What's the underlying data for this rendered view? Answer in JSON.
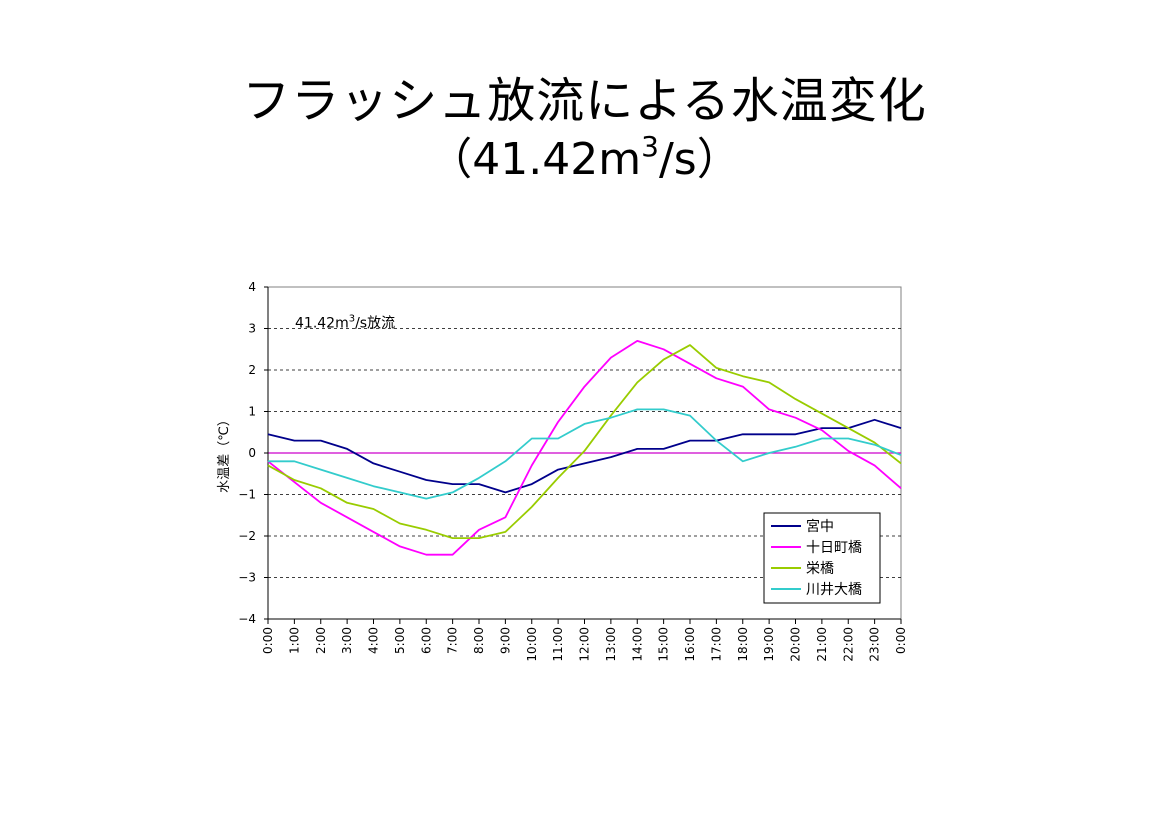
{
  "slide": {
    "title_line1": "フラッシュ放流による水温変化",
    "title_line2_prefix": "（41.42m",
    "title_line2_sup": "3",
    "title_line2_suffix": "/s）"
  },
  "chart_data": {
    "type": "line",
    "ylabel": "水温差（℃）",
    "ylim": [
      -4,
      4
    ],
    "yticks": [
      -4,
      -3,
      -2,
      -1,
      0,
      1,
      2,
      3,
      4
    ],
    "grid": "horizontal dashed",
    "legend_position": "bottom-right",
    "annotation": {
      "prefix": "41.42m",
      "sup": "3",
      "suffix": "/s放流",
      "y": 3
    },
    "zero_line_color": "#cc00cc",
    "x_labels": [
      "0:00",
      "1:00",
      "2:00",
      "3:00",
      "4:00",
      "5:00",
      "6:00",
      "7:00",
      "8:00",
      "9:00",
      "10:00",
      "11:00",
      "12:00",
      "13:00",
      "14:00",
      "15:00",
      "16:00",
      "17:00",
      "18:00",
      "19:00",
      "20:00",
      "21:00",
      "22:00",
      "23:00",
      "0:00"
    ],
    "series": [
      {
        "name": "宮中",
        "color": "#00008b",
        "values": [
          0.45,
          0.3,
          0.3,
          0.1,
          -0.25,
          -0.45,
          -0.65,
          -0.75,
          -0.75,
          -0.95,
          -0.75,
          -0.4,
          -0.25,
          -0.1,
          0.1,
          0.1,
          0.3,
          0.3,
          0.45,
          0.45,
          0.45,
          0.6,
          0.6,
          0.8,
          0.6
        ]
      },
      {
        "name": "十日町橋",
        "color": "#ff00ff",
        "values": [
          -0.2,
          -0.7,
          -1.2,
          -1.55,
          -1.9,
          -2.25,
          -2.45,
          -2.45,
          -1.85,
          -1.55,
          -0.3,
          0.75,
          1.6,
          2.3,
          2.7,
          2.5,
          2.15,
          1.8,
          1.6,
          1.05,
          0.85,
          0.55,
          0.05,
          -0.3,
          -0.85
        ]
      },
      {
        "name": "栄橋",
        "color": "#99cc00",
        "values": [
          -0.3,
          -0.65,
          -0.85,
          -1.2,
          -1.35,
          -1.7,
          -1.85,
          -2.05,
          -2.05,
          -1.9,
          -1.3,
          -0.6,
          0.05,
          0.9,
          1.7,
          2.25,
          2.6,
          2.05,
          1.85,
          1.7,
          1.3,
          0.95,
          0.6,
          0.25,
          -0.25
        ]
      },
      {
        "name": "川井大橋",
        "color": "#33cccc",
        "values": [
          -0.2,
          -0.2,
          -0.4,
          -0.6,
          -0.8,
          -0.95,
          -1.1,
          -0.95,
          -0.6,
          -0.2,
          0.35,
          0.35,
          0.7,
          0.85,
          1.05,
          1.05,
          0.9,
          0.3,
          -0.2,
          0.0,
          0.15,
          0.35,
          0.35,
          0.2,
          -0.05
        ]
      }
    ]
  }
}
